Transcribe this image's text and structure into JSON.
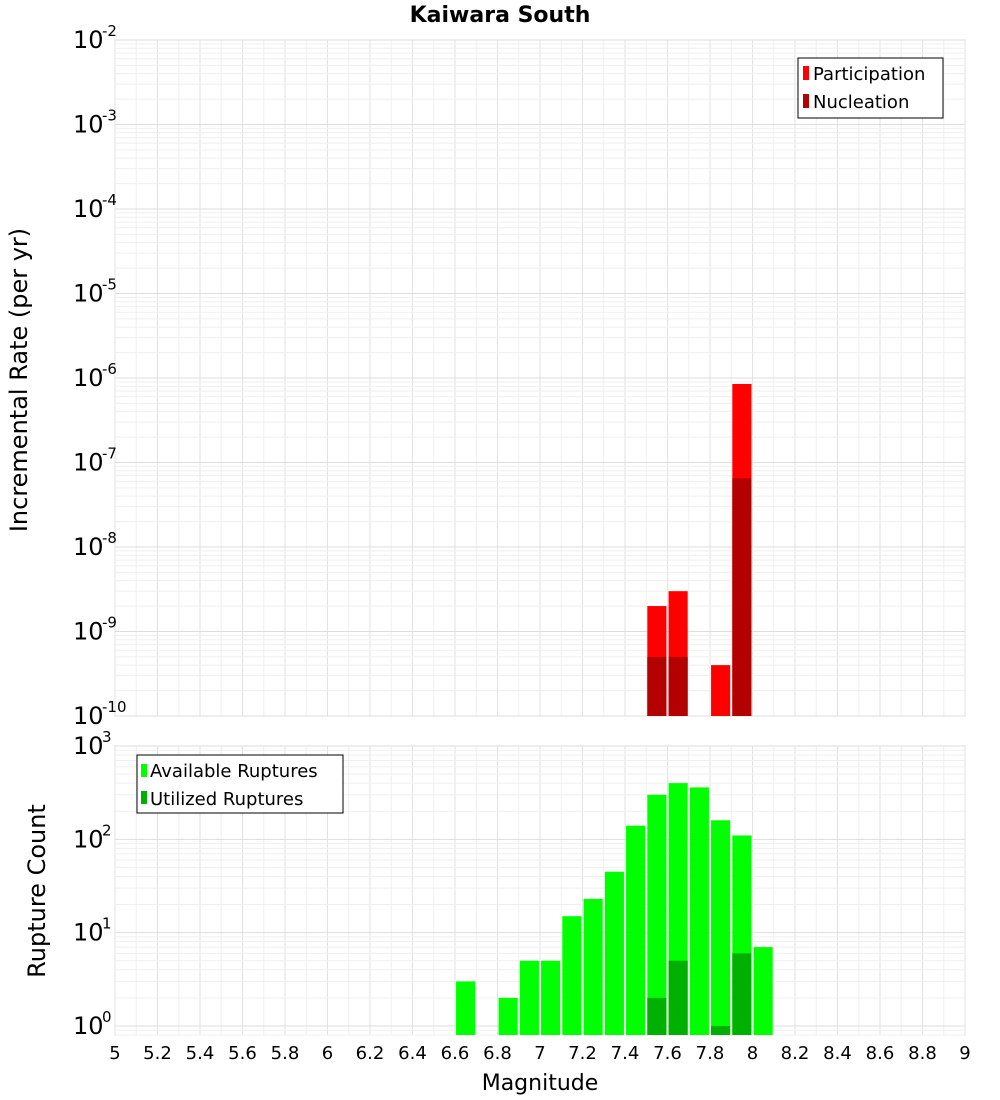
{
  "chart_data": [
    {
      "type": "bar",
      "title": "Kaiwara South",
      "xlabel": "",
      "ylabel": "Incremental Rate (per yr)",
      "yscale": "log",
      "ylim": [
        1e-10,
        0.01
      ],
      "xlim": [
        5,
        9
      ],
      "grid": true,
      "legend_position": "top-right",
      "y_ticks": [
        {
          "base": "10",
          "exp": "-10"
        },
        {
          "base": "10",
          "exp": "-9"
        },
        {
          "base": "10",
          "exp": "-8"
        },
        {
          "base": "10",
          "exp": "-7"
        },
        {
          "base": "10",
          "exp": "-6"
        },
        {
          "base": "10",
          "exp": "-5"
        },
        {
          "base": "10",
          "exp": "-4"
        },
        {
          "base": "10",
          "exp": "-3"
        },
        {
          "base": "10",
          "exp": "-2"
        }
      ],
      "series": [
        {
          "name": "Participation",
          "color": "#ff0000",
          "points": [
            {
              "x": 7.55,
              "y": 2e-09
            },
            {
              "x": 7.65,
              "y": 3e-09
            },
            {
              "x": 7.85,
              "y": 4e-10
            },
            {
              "x": 7.95,
              "y": 8.5e-07
            }
          ]
        },
        {
          "name": "Nucleation",
          "color": "#b30000",
          "points": [
            {
              "x": 7.55,
              "y": 5e-10
            },
            {
              "x": 7.65,
              "y": 5e-10
            },
            {
              "x": 7.95,
              "y": 6.5e-08
            }
          ]
        }
      ]
    },
    {
      "type": "bar",
      "title": "",
      "xlabel": "Magnitude",
      "ylabel": "Rupture Count",
      "yscale": "log",
      "ylim": [
        0.8,
        1000
      ],
      "xlim": [
        5,
        9
      ],
      "grid": true,
      "legend_position": "top-left",
      "y_ticks": [
        {
          "base": "10",
          "exp": "0"
        },
        {
          "base": "10",
          "exp": "1"
        },
        {
          "base": "10",
          "exp": "2"
        },
        {
          "base": "10",
          "exp": "3"
        }
      ],
      "x_tick_labels": [
        "5",
        "5.2",
        "5.4",
        "5.6",
        "5.8",
        "6",
        "6.2",
        "6.4",
        "6.6",
        "6.8",
        "7",
        "7.2",
        "7.4",
        "7.6",
        "7.8",
        "8",
        "8.2",
        "8.4",
        "8.6",
        "8.8",
        "9"
      ],
      "series": [
        {
          "name": "Available Ruptures",
          "color": "#00ff00",
          "points": [
            {
              "x": 6.65,
              "y": 3
            },
            {
              "x": 6.85,
              "y": 2
            },
            {
              "x": 6.95,
              "y": 5
            },
            {
              "x": 7.05,
              "y": 5
            },
            {
              "x": 7.15,
              "y": 15
            },
            {
              "x": 7.25,
              "y": 23
            },
            {
              "x": 7.35,
              "y": 45
            },
            {
              "x": 7.45,
              "y": 140
            },
            {
              "x": 7.55,
              "y": 300
            },
            {
              "x": 7.65,
              "y": 400
            },
            {
              "x": 7.75,
              "y": 360
            },
            {
              "x": 7.85,
              "y": 160
            },
            {
              "x": 7.95,
              "y": 110
            },
            {
              "x": 8.05,
              "y": 7
            }
          ]
        },
        {
          "name": "Utilized Ruptures",
          "color": "#00b000",
          "points": [
            {
              "x": 7.55,
              "y": 2
            },
            {
              "x": 7.65,
              "y": 5
            },
            {
              "x": 7.85,
              "y": 1
            },
            {
              "x": 7.95,
              "y": 6
            }
          ]
        }
      ]
    }
  ]
}
